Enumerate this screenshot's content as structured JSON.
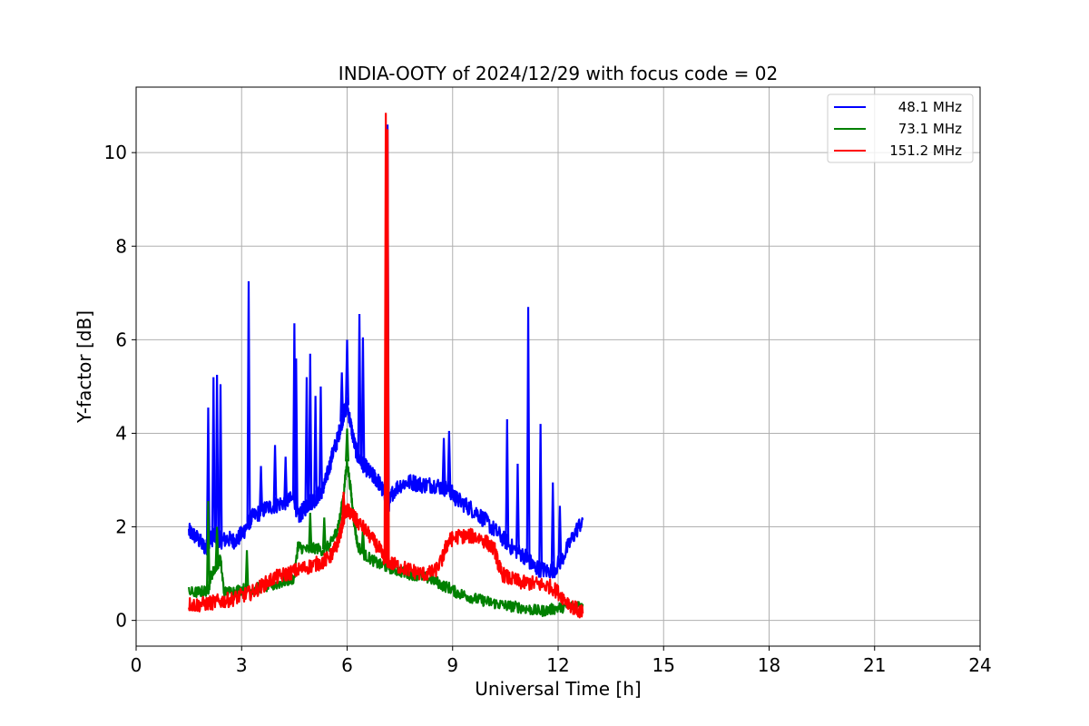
{
  "chart_data": {
    "type": "line",
    "title": "INDIA-OOTY of 2024/12/29 with focus code = 02",
    "xlabel": "Universal Time [h]",
    "ylabel": "Y-factor [dB]",
    "xlim": [
      0,
      24
    ],
    "ylim": [
      -0.55,
      11.4
    ],
    "xticks": [
      0,
      3,
      6,
      9,
      12,
      15,
      18,
      21,
      24
    ],
    "yticks": [
      0,
      2,
      4,
      6,
      8,
      10
    ],
    "grid": true,
    "legend_position": "top-right",
    "series": [
      {
        "name": "48.1 MHz",
        "color": "#0000ff",
        "x": [
          1.5,
          1.6,
          1.75,
          1.9,
          2.0,
          2.05,
          2.15,
          2.25,
          2.35,
          2.45,
          2.6,
          2.75,
          2.9,
          3.0,
          3.1,
          3.2,
          3.3,
          3.5,
          3.7,
          3.9,
          4.1,
          4.3,
          4.5,
          4.6,
          4.7,
          4.8,
          4.9,
          5.0,
          5.1,
          5.2,
          5.3,
          5.4,
          5.5,
          5.6,
          5.7,
          5.8,
          5.9,
          6.0,
          6.1,
          6.2,
          6.3,
          6.4,
          6.5,
          6.6,
          6.7,
          6.8,
          6.9,
          7.0,
          7.1,
          7.2,
          7.3,
          7.5,
          7.7,
          7.9,
          8.1,
          8.3,
          8.5,
          8.7,
          8.9,
          9.0,
          9.1,
          9.3,
          9.5,
          9.7,
          9.9,
          10.1,
          10.3,
          10.5,
          10.7,
          10.9,
          11.1,
          11.2,
          11.3,
          11.5,
          11.7,
          11.9,
          12.1,
          12.3,
          12.5,
          12.7
        ],
        "values": [
          1.9,
          1.85,
          1.75,
          1.6,
          1.55,
          1.7,
          1.75,
          1.8,
          1.75,
          1.7,
          1.75,
          1.7,
          1.75,
          1.85,
          1.95,
          2.1,
          2.2,
          2.3,
          2.4,
          2.45,
          2.5,
          2.55,
          2.6,
          2.2,
          2.3,
          2.4,
          2.5,
          2.55,
          2.6,
          2.7,
          2.8,
          3.0,
          3.3,
          3.6,
          3.8,
          4.1,
          4.4,
          4.6,
          4.2,
          3.8,
          3.5,
          3.4,
          3.3,
          3.2,
          3.1,
          3.05,
          2.95,
          2.8,
          2.6,
          2.5,
          2.75,
          2.9,
          2.95,
          2.95,
          2.9,
          2.9,
          2.9,
          2.85,
          2.8,
          2.7,
          2.6,
          2.5,
          2.4,
          2.3,
          2.15,
          2.0,
          1.85,
          1.7,
          1.55,
          1.45,
          1.35,
          1.25,
          1.15,
          1.1,
          1.05,
          1.1,
          1.3,
          1.6,
          1.9,
          2.15
        ],
        "spikes": [
          [
            2.05,
            4.55
          ],
          [
            2.2,
            5.2
          ],
          [
            2.3,
            5.25
          ],
          [
            2.4,
            5.05
          ],
          [
            3.2,
            7.25
          ],
          [
            3.55,
            3.3
          ],
          [
            3.95,
            3.75
          ],
          [
            4.25,
            3.5
          ],
          [
            4.5,
            6.35
          ],
          [
            4.55,
            5.6
          ],
          [
            4.85,
            5.2
          ],
          [
            4.95,
            5.7
          ],
          [
            5.1,
            4.8
          ],
          [
            5.25,
            5.0
          ],
          [
            5.85,
            5.3
          ],
          [
            6.0,
            6.0
          ],
          [
            6.35,
            6.55
          ],
          [
            6.45,
            6.05
          ],
          [
            7.15,
            10.6
          ],
          [
            8.75,
            3.9
          ],
          [
            8.9,
            4.05
          ],
          [
            10.55,
            4.3
          ],
          [
            10.85,
            3.35
          ],
          [
            11.15,
            6.7
          ],
          [
            11.5,
            4.2
          ],
          [
            11.85,
            2.95
          ],
          [
            12.05,
            2.45
          ]
        ]
      },
      {
        "name": "73.1 MHz",
        "color": "#008000",
        "x": [
          1.5,
          1.7,
          1.9,
          2.05,
          2.1,
          2.2,
          2.3,
          2.4,
          2.5,
          2.7,
          2.9,
          3.1,
          3.3,
          3.5,
          3.7,
          3.9,
          4.1,
          4.3,
          4.5,
          4.6,
          4.7,
          4.9,
          5.1,
          5.3,
          5.5,
          5.6,
          5.7,
          5.8,
          5.9,
          6.0,
          6.1,
          6.2,
          6.3,
          6.5,
          6.7,
          6.9,
          7.1,
          7.3,
          7.5,
          7.7,
          7.9,
          8.1,
          8.3,
          8.5,
          8.7,
          8.9,
          9.1,
          9.3,
          9.5,
          9.7,
          9.9,
          10.1,
          10.3,
          10.5,
          10.7,
          10.9,
          11.1,
          11.3,
          11.5,
          11.7,
          11.9,
          12.1,
          12.3,
          12.5,
          12.7
        ],
        "values": [
          0.6,
          0.6,
          0.62,
          0.65,
          0.9,
          1.05,
          1.2,
          1.3,
          0.6,
          0.62,
          0.65,
          0.68,
          0.65,
          0.7,
          0.72,
          0.75,
          0.8,
          0.85,
          0.9,
          1.6,
          1.55,
          1.5,
          1.55,
          1.5,
          1.6,
          1.75,
          1.9,
          2.2,
          2.7,
          3.4,
          2.8,
          2.1,
          1.6,
          1.4,
          1.3,
          1.2,
          1.15,
          1.1,
          1.05,
          1.0,
          0.98,
          0.95,
          0.9,
          0.85,
          0.75,
          0.7,
          0.6,
          0.55,
          0.5,
          0.45,
          0.42,
          0.38,
          0.35,
          0.32,
          0.3,
          0.28,
          0.25,
          0.22,
          0.2,
          0.22,
          0.25,
          0.28,
          0.3,
          0.32,
          0.35
        ],
        "spikes": [
          [
            2.05,
            2.55
          ],
          [
            2.3,
            2.0
          ],
          [
            3.15,
            1.5
          ],
          [
            4.95,
            2.3
          ],
          [
            5.35,
            2.2
          ],
          [
            6.0,
            4.1
          ],
          [
            6.45,
            2.0
          ],
          [
            7.15,
            6.3
          ]
        ]
      },
      {
        "name": "151.2 MHz",
        "color": "#ff0000",
        "x": [
          1.5,
          1.7,
          1.9,
          2.1,
          2.3,
          2.5,
          2.7,
          2.9,
          3.1,
          3.3,
          3.5,
          3.7,
          3.9,
          4.1,
          4.3,
          4.5,
          4.7,
          4.9,
          5.1,
          5.3,
          5.5,
          5.6,
          5.7,
          5.8,
          5.9,
          6.0,
          6.1,
          6.2,
          6.3,
          6.5,
          6.7,
          6.9,
          7.0,
          7.1,
          7.3,
          7.5,
          7.7,
          7.9,
          8.1,
          8.3,
          8.5,
          8.7,
          8.8,
          8.9,
          9.0,
          9.2,
          9.4,
          9.6,
          9.8,
          10.0,
          10.2,
          10.3,
          10.4,
          10.6,
          10.8,
          11.0,
          11.2,
          11.4,
          11.6,
          11.8,
          12.0,
          12.2,
          12.4,
          12.6,
          12.7
        ],
        "values": [
          0.35,
          0.33,
          0.35,
          0.37,
          0.4,
          0.42,
          0.45,
          0.5,
          0.55,
          0.6,
          0.7,
          0.8,
          0.9,
          0.95,
          1.0,
          1.05,
          1.1,
          1.15,
          1.2,
          1.25,
          1.35,
          1.45,
          1.6,
          1.85,
          2.2,
          2.35,
          2.3,
          2.2,
          2.1,
          1.95,
          1.75,
          1.55,
          1.4,
          1.3,
          1.2,
          1.15,
          1.1,
          1.05,
          1.0,
          1.0,
          1.05,
          1.3,
          1.55,
          1.7,
          1.75,
          1.8,
          1.8,
          1.8,
          1.75,
          1.65,
          1.5,
          1.2,
          1.0,
          0.9,
          0.85,
          0.8,
          0.8,
          0.78,
          0.75,
          0.72,
          0.6,
          0.45,
          0.3,
          0.2,
          0.15
        ],
        "spikes": [
          [
            5.9,
            2.75
          ],
          [
            7.1,
            10.85
          ],
          [
            7.15,
            10.5
          ]
        ]
      }
    ]
  }
}
